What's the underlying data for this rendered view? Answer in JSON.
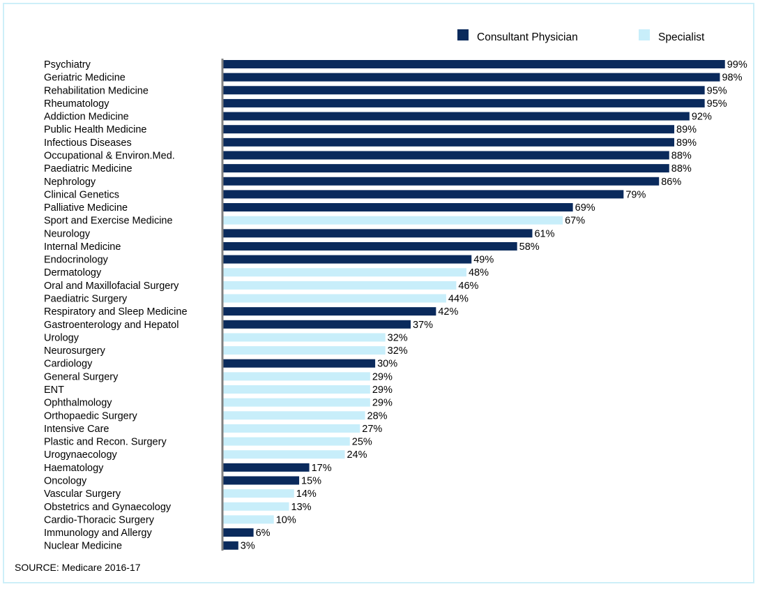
{
  "colors": {
    "consultant_physician": "#0a2a5c",
    "specialist": "#c8eefa",
    "axis": "#808080",
    "border": "#cdeff8"
  },
  "source": "SOURCE: Medicare 2016-17",
  "chart_data": {
    "type": "bar",
    "orientation": "horizontal",
    "legend_position": "top-right",
    "value_format": "percent",
    "xlim": [
      0,
      100
    ],
    "grid": false,
    "legend": [
      {
        "key": "consultant_physician",
        "label": "Consultant Physician"
      },
      {
        "key": "specialist",
        "label": "Specialist"
      }
    ],
    "bars": [
      {
        "label": "Psychiatry",
        "value": 99,
        "group": "consultant_physician"
      },
      {
        "label": "Geriatric Medicine",
        "value": 98,
        "group": "consultant_physician"
      },
      {
        "label": "Rehabilitation Medicine",
        "value": 95,
        "group": "consultant_physician"
      },
      {
        "label": "Rheumatology",
        "value": 95,
        "group": "consultant_physician"
      },
      {
        "label": "Addiction Medicine",
        "value": 92,
        "group": "consultant_physician"
      },
      {
        "label": "Public Health Medicine",
        "value": 89,
        "group": "consultant_physician"
      },
      {
        "label": "Infectious Diseases",
        "value": 89,
        "group": "consultant_physician"
      },
      {
        "label": "Occupational & Environ.Med.",
        "value": 88,
        "group": "consultant_physician"
      },
      {
        "label": "Paediatric Medicine",
        "value": 88,
        "group": "consultant_physician"
      },
      {
        "label": "Nephrology",
        "value": 86,
        "group": "consultant_physician"
      },
      {
        "label": "Clinical Genetics",
        "value": 79,
        "group": "consultant_physician"
      },
      {
        "label": "Palliative Medicine",
        "value": 69,
        "group": "consultant_physician"
      },
      {
        "label": "Sport and Exercise Medicine",
        "value": 67,
        "group": "specialist"
      },
      {
        "label": "Neurology",
        "value": 61,
        "group": "consultant_physician"
      },
      {
        "label": "Internal Medicine",
        "value": 58,
        "group": "consultant_physician"
      },
      {
        "label": "Endocrinology",
        "value": 49,
        "group": "consultant_physician"
      },
      {
        "label": "Dermatology",
        "value": 48,
        "group": "specialist"
      },
      {
        "label": "Oral and Maxillofacial Surgery",
        "value": 46,
        "group": "specialist"
      },
      {
        "label": "Paediatric Surgery",
        "value": 44,
        "group": "specialist"
      },
      {
        "label": "Respiratory and Sleep Medicine",
        "value": 42,
        "group": "consultant_physician"
      },
      {
        "label": "Gastroenterology and Hepatol",
        "value": 37,
        "group": "consultant_physician"
      },
      {
        "label": "Urology",
        "value": 32,
        "group": "specialist"
      },
      {
        "label": "Neurosurgery",
        "value": 32,
        "group": "specialist"
      },
      {
        "label": "Cardiology",
        "value": 30,
        "group": "consultant_physician"
      },
      {
        "label": "General Surgery",
        "value": 29,
        "group": "specialist"
      },
      {
        "label": "ENT",
        "value": 29,
        "group": "specialist"
      },
      {
        "label": "Ophthalmology",
        "value": 29,
        "group": "specialist"
      },
      {
        "label": "Orthopaedic Surgery",
        "value": 28,
        "group": "specialist"
      },
      {
        "label": "Intensive Care",
        "value": 27,
        "group": "specialist"
      },
      {
        "label": "Plastic and Recon. Surgery",
        "value": 25,
        "group": "specialist"
      },
      {
        "label": "Urogynaecology",
        "value": 24,
        "group": "specialist"
      },
      {
        "label": "Haematology",
        "value": 17,
        "group": "consultant_physician"
      },
      {
        "label": "Oncology",
        "value": 15,
        "group": "consultant_physician"
      },
      {
        "label": "Vascular Surgery",
        "value": 14,
        "group": "specialist"
      },
      {
        "label": "Obstetrics and Gynaecology",
        "value": 13,
        "group": "specialist"
      },
      {
        "label": "Cardio-Thoracic Surgery",
        "value": 10,
        "group": "specialist"
      },
      {
        "label": "Immunology and Allergy",
        "value": 6,
        "group": "consultant_physician"
      },
      {
        "label": "Nuclear Medicine",
        "value": 3,
        "group": "consultant_physician"
      }
    ]
  }
}
